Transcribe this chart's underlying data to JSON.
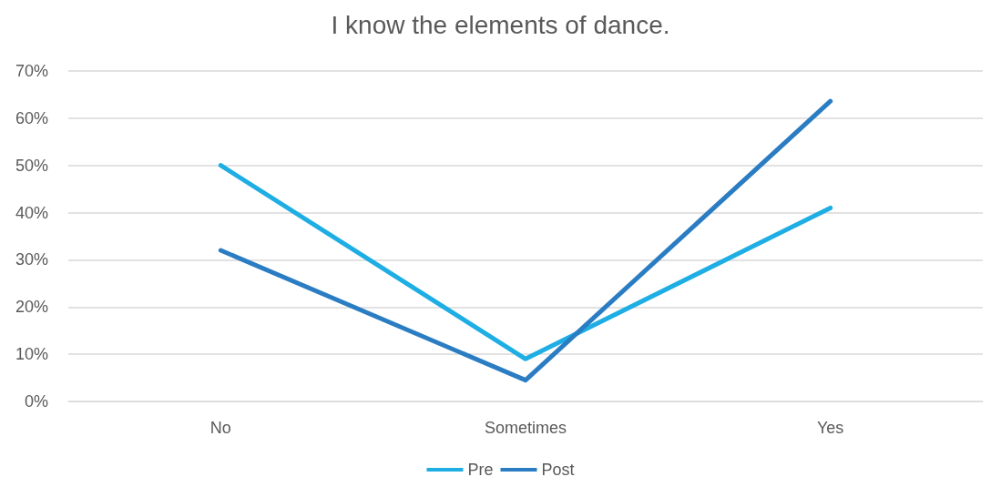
{
  "chart_data": {
    "type": "line",
    "title": "I know the elements of dance.",
    "categories": [
      "No",
      "Sometimes",
      "Yes"
    ],
    "series": [
      {
        "name": "Pre",
        "color": "#1eaee4",
        "values": [
          50,
          9,
          41
        ]
      },
      {
        "name": "Post",
        "color": "#2b7dc3",
        "values": [
          32,
          4.5,
          63.6
        ]
      }
    ],
    "ylim": [
      0,
      70
    ],
    "yticks": [
      {
        "value": 0,
        "label": "0%"
      },
      {
        "value": 10,
        "label": "10%"
      },
      {
        "value": 20,
        "label": "20%"
      },
      {
        "value": 30,
        "label": "30%"
      },
      {
        "value": 40,
        "label": "40%"
      },
      {
        "value": 50,
        "label": "50%"
      },
      {
        "value": 60,
        "label": "60%"
      },
      {
        "value": 70,
        "label": "70%"
      }
    ],
    "grid": "y",
    "legend": "bottom",
    "marker": "none",
    "line_style": "solid"
  }
}
